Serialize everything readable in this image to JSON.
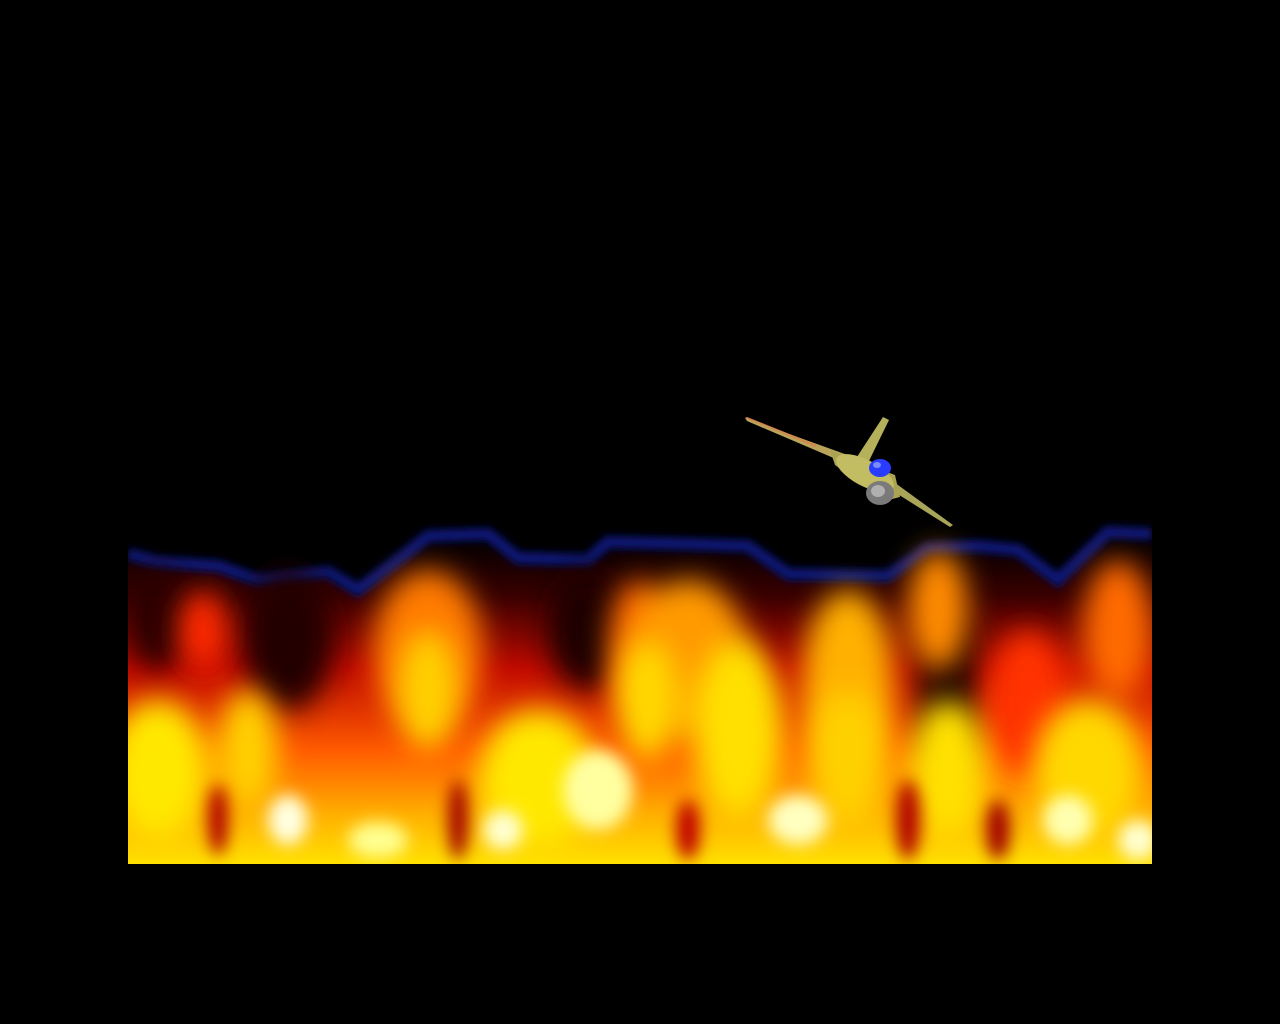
{
  "scene": {
    "background_color": "#000000",
    "objects": [
      {
        "kind": "fire-effect",
        "palette": [
          "#1a0000",
          "#8b0000",
          "#ff2a00",
          "#ff7a00",
          "#ffd400",
          "#ffff40",
          "#ffffe0"
        ],
        "edge_glow": "#0a0f66"
      },
      {
        "kind": "fighter-jet",
        "body_color": "#b8b45a",
        "canopy_color": "#2a3cff",
        "nozzle_color": "#8a8a8a"
      }
    ]
  }
}
